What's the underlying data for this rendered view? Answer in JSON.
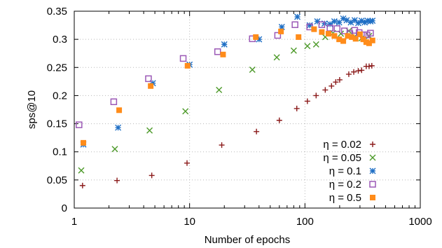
{
  "chart_data": {
    "type": "scatter",
    "xlabel": "Number of epochs",
    "ylabel": "sps@10",
    "x_scale": "log",
    "xlim": [
      1,
      1000
    ],
    "ylim": [
      0,
      0.35
    ],
    "x_ticks": [
      1,
      10,
      100,
      1000
    ],
    "x_tick_labels": [
      "1",
      "10",
      "100",
      "1000"
    ],
    "y_ticks": [
      0,
      0.05,
      0.1,
      0.15,
      0.2,
      0.25,
      0.3,
      0.35
    ],
    "y_tick_labels": [
      "0",
      "0.05",
      "0.1",
      "0.15",
      "0.2",
      "0.25",
      "0.3",
      "0.35"
    ],
    "grid": true,
    "legend_position": "bottom-right",
    "series": [
      {
        "name": "η = 0.02",
        "marker": "plus",
        "color": "#8b1a1a",
        "x": [
          1.18,
          2.35,
          4.7,
          9.5,
          19,
          38,
          60,
          85,
          105,
          125,
          150,
          170,
          185,
          200,
          240,
          265,
          290,
          310,
          340,
          360,
          380
        ],
        "y": [
          0.04,
          0.049,
          0.058,
          0.08,
          0.112,
          0.136,
          0.156,
          0.177,
          0.19,
          0.2,
          0.21,
          0.217,
          0.224,
          0.228,
          0.238,
          0.242,
          0.244,
          0.245,
          0.252,
          0.252,
          0.253
        ]
      },
      {
        "name": "η = 0.05",
        "marker": "cross",
        "color": "#4d9a2a",
        "x": [
          1.15,
          2.25,
          4.5,
          9.2,
          18,
          35,
          57,
          80,
          105,
          125,
          150,
          175,
          205,
          240,
          270,
          310,
          360
        ],
        "y": [
          0.067,
          0.105,
          0.138,
          0.172,
          0.21,
          0.246,
          0.268,
          0.28,
          0.288,
          0.291,
          0.304,
          0.311,
          0.31,
          0.315,
          0.305,
          0.302,
          0.306
        ]
      },
      {
        "name": "η = 0.1",
        "marker": "star",
        "color": "#1f6fc5",
        "x": [
          1.2,
          2.4,
          4.8,
          10,
          20,
          40,
          63,
          86,
          110,
          128,
          148,
          165,
          180,
          198,
          215,
          230,
          250,
          270,
          290,
          310,
          330,
          350,
          370,
          385
        ],
        "y": [
          0.113,
          0.143,
          0.222,
          0.255,
          0.291,
          0.3,
          0.322,
          0.34,
          0.325,
          0.332,
          0.328,
          0.327,
          0.332,
          0.33,
          0.337,
          0.334,
          0.33,
          0.334,
          0.329,
          0.333,
          0.33,
          0.333,
          0.332,
          0.333
        ]
      },
      {
        "name": "η = 0.2",
        "marker": "square-open",
        "color": "#9b59b6",
        "x": [
          1.1,
          2.2,
          4.4,
          8.8,
          17.5,
          35,
          58,
          82,
          110,
          140,
          165,
          190,
          220,
          245,
          270,
          295,
          320,
          345,
          370
        ],
        "y": [
          0.148,
          0.189,
          0.23,
          0.266,
          0.278,
          0.301,
          0.307,
          0.326,
          0.322,
          0.326,
          0.32,
          0.319,
          0.315,
          0.31,
          0.316,
          0.312,
          0.308,
          0.308,
          0.311
        ]
      },
      {
        "name": "η = 0.5",
        "marker": "square-filled",
        "color": "#ff8c1a",
        "x": [
          1.2,
          2.45,
          4.6,
          9.6,
          19.5,
          37.5,
          62,
          88,
          120,
          140,
          160,
          180,
          198,
          215,
          235,
          255,
          275,
          300,
          320,
          340,
          360,
          385
        ],
        "y": [
          0.116,
          0.174,
          0.217,
          0.253,
          0.273,
          0.304,
          0.314,
          0.304,
          0.318,
          0.313,
          0.31,
          0.306,
          0.3,
          0.297,
          0.306,
          0.304,
          0.301,
          0.309,
          0.3,
          0.295,
          0.293,
          0.298
        ]
      }
    ]
  }
}
